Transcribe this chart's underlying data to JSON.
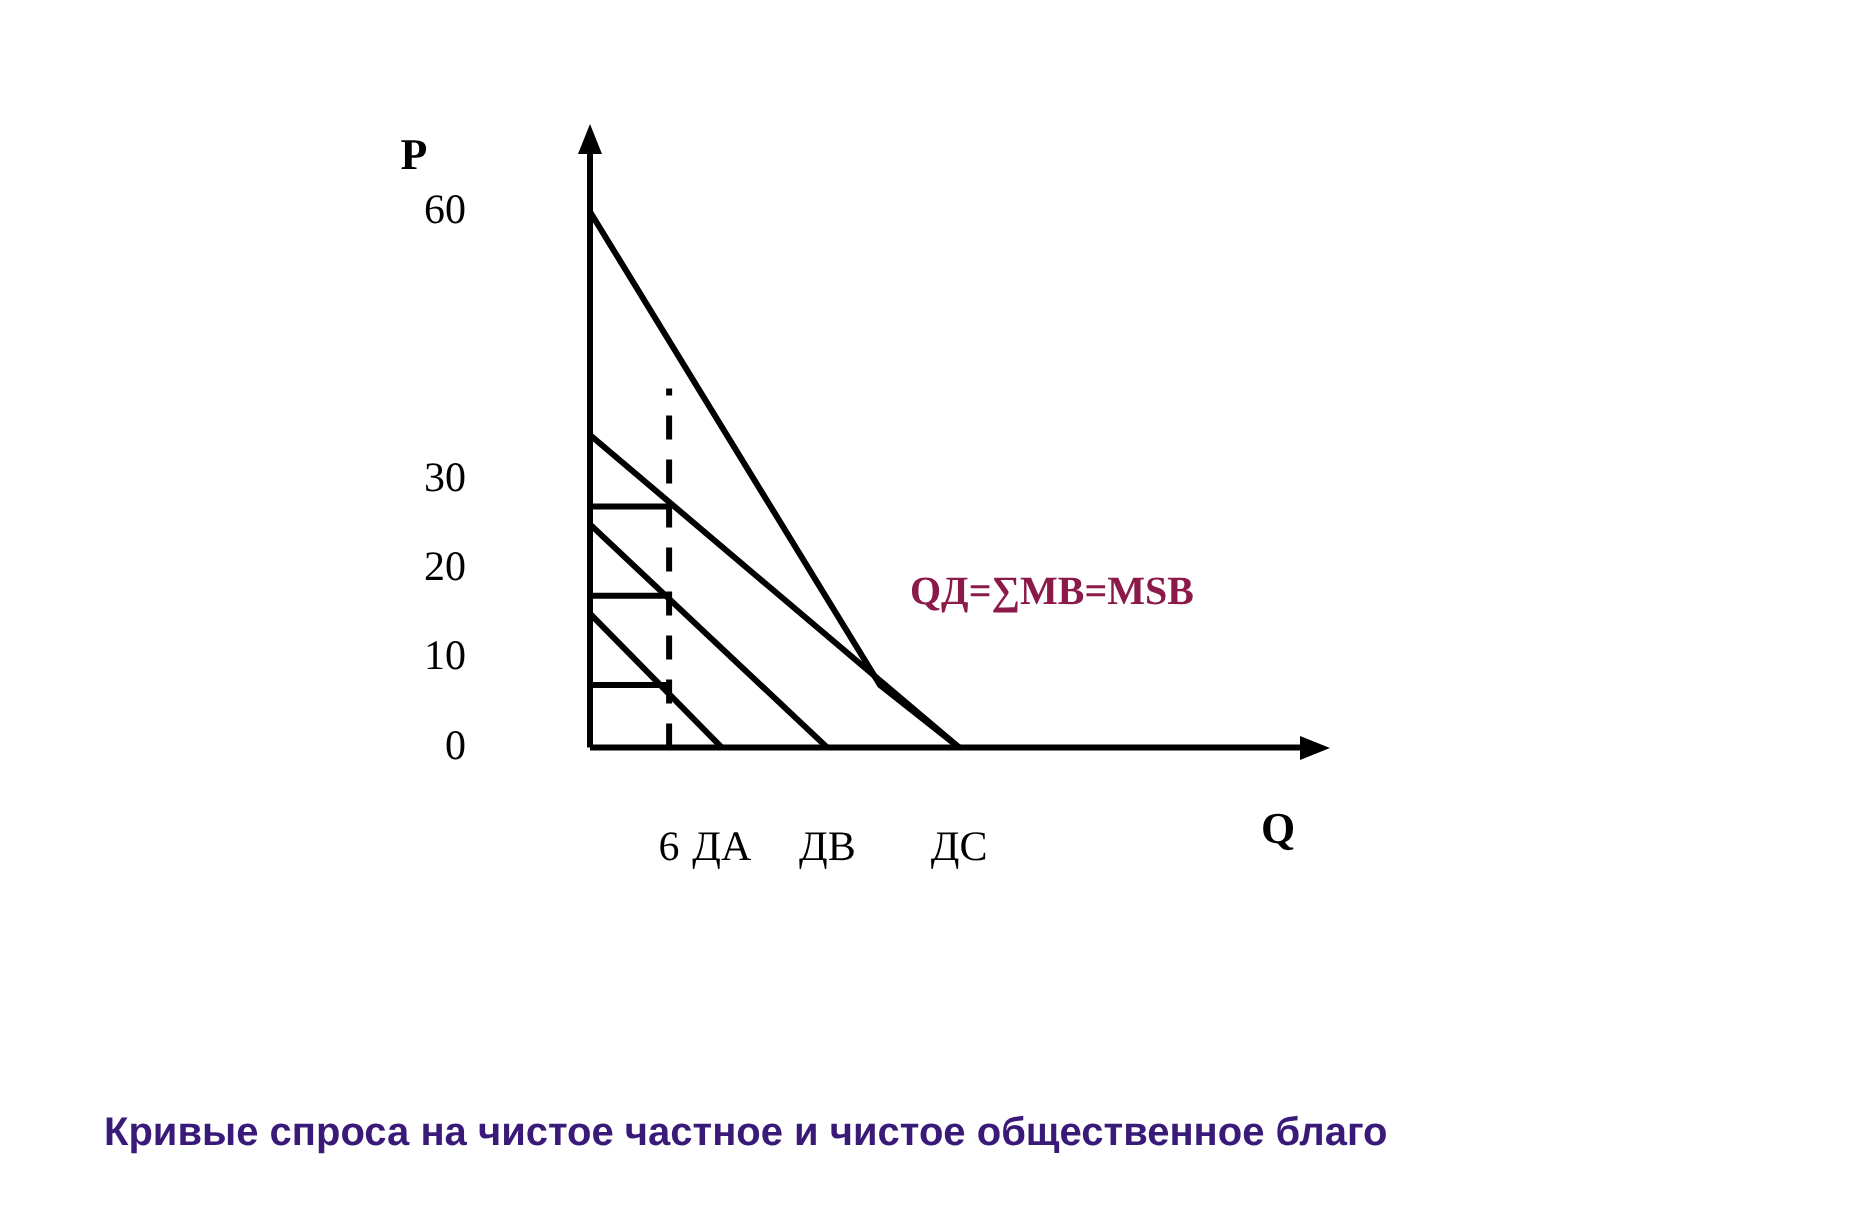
{
  "chart_data": {
    "type": "line",
    "xlabel": "Q",
    "ylabel": "P",
    "categories": [
      null,
      null,
      null,
      "6",
      null,
      "ДА",
      null,
      null,
      null,
      "ДВ",
      null,
      null,
      null,
      null,
      "ДС",
      null,
      null,
      null,
      null,
      null,
      null,
      null,
      null,
      null,
      null,
      null,
      null,
      null
    ],
    "ylim": [
      0,
      67
    ],
    "yticks": [
      0,
      10,
      20,
      30,
      60
    ],
    "series": [
      {
        "color": "#000000",
        "values": [
          15,
          null,
          null,
          null,
          null,
          0,
          null,
          null,
          null,
          null,
          null,
          null,
          null,
          null,
          null,
          null,
          null,
          null,
          null,
          null,
          null,
          null,
          null,
          null,
          null,
          null,
          null,
          null
        ]
      },
      {
        "color": "#000000",
        "values": [
          25,
          null,
          null,
          null,
          null,
          null,
          null,
          null,
          null,
          0,
          null,
          null,
          null,
          null,
          null,
          null,
          null,
          null,
          null,
          null,
          null,
          null,
          null,
          null,
          null,
          null,
          null,
          null
        ]
      },
      {
        "color": "#000000",
        "values": [
          35,
          null,
          null,
          null,
          null,
          null,
          null,
          null,
          null,
          null,
          null,
          null,
          null,
          null,
          0,
          null,
          null,
          null,
          null,
          null,
          null,
          null,
          null,
          null,
          null,
          null,
          null,
          null
        ]
      },
      {
        "color": "#000000",
        "values": [
          60,
          null,
          null,
          null,
          null,
          null,
          null,
          null,
          null,
          null,
          null,
          7,
          null,
          null,
          0,
          null,
          null,
          null,
          null,
          null,
          null,
          null,
          null,
          null,
          null,
          null,
          null,
          null
        ]
      },
      {
        "color": "#000000",
        "values": [
          7,
          null,
          null,
          7,
          null,
          null,
          null,
          null,
          null,
          null,
          null,
          null,
          null,
          null,
          null,
          null,
          null,
          null,
          null,
          null,
          null,
          null,
          null,
          null,
          null,
          null,
          null,
          null
        ]
      },
      {
        "color": "#000000",
        "values": [
          17,
          null,
          null,
          17,
          null,
          null,
          null,
          null,
          null,
          null,
          null,
          null,
          null,
          null,
          null,
          null,
          null,
          null,
          null,
          null,
          null,
          null,
          null,
          null,
          null,
          null,
          null,
          null
        ]
      },
      {
        "color": "#000000",
        "values": [
          27,
          null,
          null,
          27,
          null,
          null,
          null,
          null,
          null,
          null,
          null,
          null,
          null,
          null,
          null,
          null,
          null,
          null,
          null,
          null,
          null,
          null,
          null,
          null,
          null,
          null,
          null,
          null
        ]
      }
    ],
    "ref_lines": [
      {
        "axis": "x",
        "value": "6",
        "color": "#000000",
        "line_style": "dashed"
      }
    ],
    "annotations": [
      "QД=∑MB=MSB",
      "Кривые спроса на чистое частное и чистое общественное благо"
    ],
    "grid": false,
    "legend": false,
    "marker": "none",
    "line_style": "solid"
  }
}
